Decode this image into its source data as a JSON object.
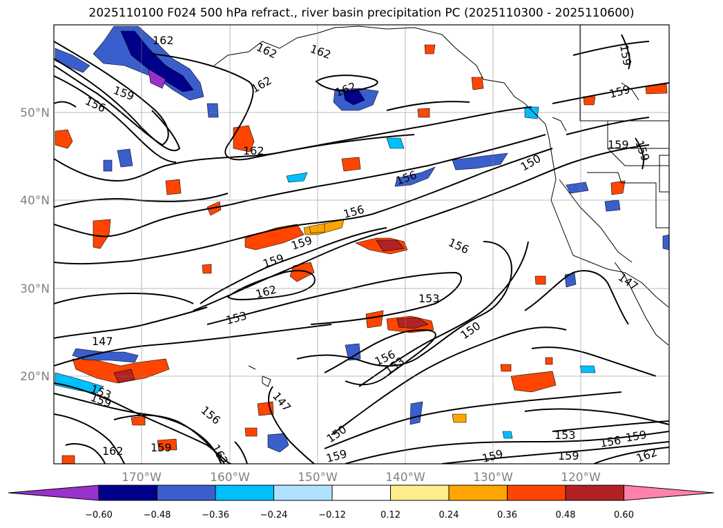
{
  "title": "2025110100 F024 500 hPa refract., river basin precipitation PC (2025110300 - 2025110600)",
  "lat_labels": [
    "50°N",
    "40°N",
    "30°N",
    "20°N"
  ],
  "lon_labels": [
    "170°W",
    "160°W",
    "150°W",
    "140°W",
    "130°W",
    "120°W"
  ],
  "contour_labels": [
    "162",
    "162",
    "162",
    "162",
    "162",
    "159",
    "156",
    "162",
    "150",
    "156",
    "156",
    "159",
    "159",
    "162",
    "153",
    "156",
    "153",
    "150",
    "156",
    "153",
    "147",
    "153",
    "159",
    "156",
    "147",
    "150",
    "159",
    "162",
    "159",
    "162",
    "159",
    "159",
    "159",
    "159",
    "153",
    "156",
    "159",
    "162",
    "147",
    "159",
    "159"
  ],
  "colorbar": {
    "tick_labels": [
      "−0.60",
      "−0.48",
      "−0.36",
      "−0.24",
      "−0.12",
      "0.12",
      "0.24",
      "0.36",
      "0.48",
      "0.60"
    ],
    "colors": [
      "#9932cc",
      "#00008b",
      "#3a5fcd",
      "#00bfff",
      "#b0e2ff",
      "#ffffff",
      "#ffec8b",
      "#ffa500",
      "#ff4500",
      "#b22222",
      "#ff82ab"
    ]
  },
  "colors": {
    "contour": "#000000",
    "grid": "#808080",
    "coast": "#000000"
  }
}
